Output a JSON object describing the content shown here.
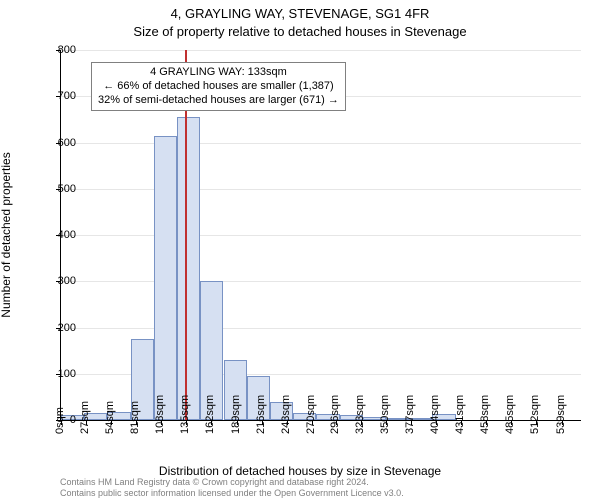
{
  "title": "4, GRAYLING WAY, STEVENAGE, SG1 4FR",
  "subtitle": "Size of property relative to detached houses in Stevenage",
  "ylabel": "Number of detached properties",
  "xlabel": "Distribution of detached houses by size in Stevenage",
  "attribution_line1": "Contains HM Land Registry data © Crown copyright and database right 2024.",
  "attribution_line2": "Contains public sector information licensed under the Open Government Licence v3.0.",
  "annotation": {
    "line1": "4 GRAYLING WAY: 133sqm",
    "line2": "← 66% of detached houses are smaller (1,387)",
    "line3": "32% of semi-detached houses are larger (671) →"
  },
  "chart": {
    "type": "histogram",
    "background_color": "#ffffff",
    "grid_color": "#e6e6e6",
    "axis_color": "#000000",
    "bar_fill": "#d6e0f2",
    "bar_stroke": "#7892c4",
    "marker_color": "#c03030",
    "marker_x": 133,
    "title_fontsize": 13,
    "label_fontsize": 12,
    "tick_fontsize": 11,
    "annotation_fontsize": 11,
    "attribution_fontsize": 9,
    "xlim": [
      0,
      560
    ],
    "ylim": [
      0,
      800
    ],
    "xtick_step": 27,
    "ytick_step": 100,
    "x_unit": "sqm",
    "xticks": [
      0,
      27,
      54,
      81,
      108,
      135,
      162,
      189,
      216,
      243,
      270,
      296,
      323,
      350,
      377,
      404,
      431,
      458,
      485,
      512,
      539
    ],
    "bars": [
      {
        "x0": 0,
        "x1": 25,
        "y": 10
      },
      {
        "x0": 25,
        "x1": 50,
        "y": 15
      },
      {
        "x0": 50,
        "x1": 75,
        "y": 18
      },
      {
        "x0": 75,
        "x1": 100,
        "y": 175
      },
      {
        "x0": 100,
        "x1": 125,
        "y": 615
      },
      {
        "x0": 125,
        "x1": 150,
        "y": 655
      },
      {
        "x0": 150,
        "x1": 175,
        "y": 300
      },
      {
        "x0": 175,
        "x1": 200,
        "y": 130
      },
      {
        "x0": 200,
        "x1": 225,
        "y": 95
      },
      {
        "x0": 225,
        "x1": 250,
        "y": 40
      },
      {
        "x0": 250,
        "x1": 275,
        "y": 15
      },
      {
        "x0": 275,
        "x1": 300,
        "y": 12
      },
      {
        "x0": 300,
        "x1": 325,
        "y": 10
      },
      {
        "x0": 325,
        "x1": 350,
        "y": 7
      },
      {
        "x0": 350,
        "x1": 375,
        "y": 5
      },
      {
        "x0": 375,
        "x1": 400,
        "y": 4
      },
      {
        "x0": 400,
        "x1": 425,
        "y": 12
      }
    ]
  }
}
